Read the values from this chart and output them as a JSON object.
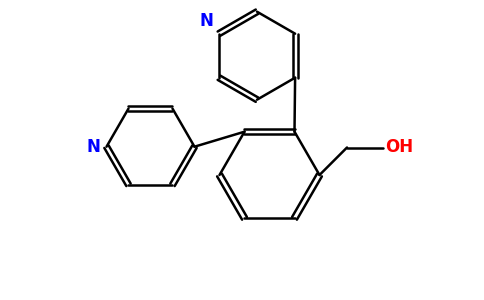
{
  "background_color": "#ffffff",
  "bond_color": "#000000",
  "nitrogen_color": "#0000ff",
  "oxygen_color": "#ff0000",
  "bond_width": 1.8,
  "figsize": [
    4.84,
    3.0
  ],
  "dpi": 100,
  "xlim": [
    0,
    9.5
  ],
  "ylim": [
    0,
    6.0
  ]
}
